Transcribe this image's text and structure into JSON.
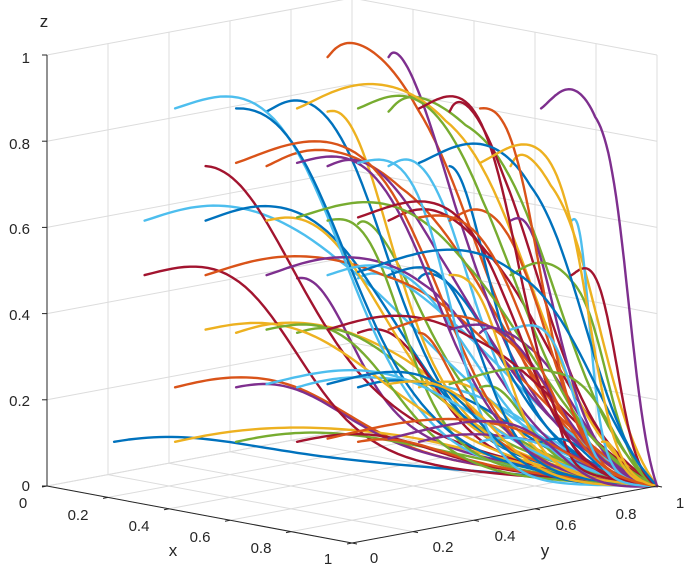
{
  "chart_data": {
    "type": "line",
    "plot_style": "3d",
    "title": "",
    "xlabel": "x",
    "ylabel": "y",
    "zlabel": "z",
    "xlim": [
      0,
      1
    ],
    "ylim": [
      0,
      1
    ],
    "zlim": [
      0,
      1
    ],
    "grid": true,
    "legend": "none",
    "ticks": {
      "x": [
        "0",
        "0.2",
        "0.4",
        "0.6",
        "0.8",
        "1"
      ],
      "y": [
        "0",
        "0.2",
        "0.4",
        "0.6",
        "0.8",
        "1"
      ],
      "z": [
        "0",
        "0.2",
        "0.4",
        "0.6",
        "0.8",
        "1"
      ]
    },
    "tick_values": [
      0,
      0.2,
      0.4,
      0.6,
      0.8,
      1
    ],
    "colors": [
      "#0072BD",
      "#D95319",
      "#EDB120",
      "#7E2F8E",
      "#77AC30",
      "#4DBEEE",
      "#A2142F"
    ],
    "description": "Evolutionary trajectories starting from initial points on a grid of x in {0.1,...,0.9} and z in {0.1,...,0.9}, all converging toward the point (x=1, y=1, z=0)",
    "initial_x": [
      0.1,
      0.2,
      0.3,
      0.4,
      0.5,
      0.6,
      0.7,
      0.8,
      0.9
    ],
    "initial_z": [
      0.1,
      0.2,
      0.3,
      0.4,
      0.5,
      0.6,
      0.7,
      0.8,
      0.9
    ],
    "equilibrium": {
      "x": 1,
      "y": 1,
      "z": 0
    }
  }
}
